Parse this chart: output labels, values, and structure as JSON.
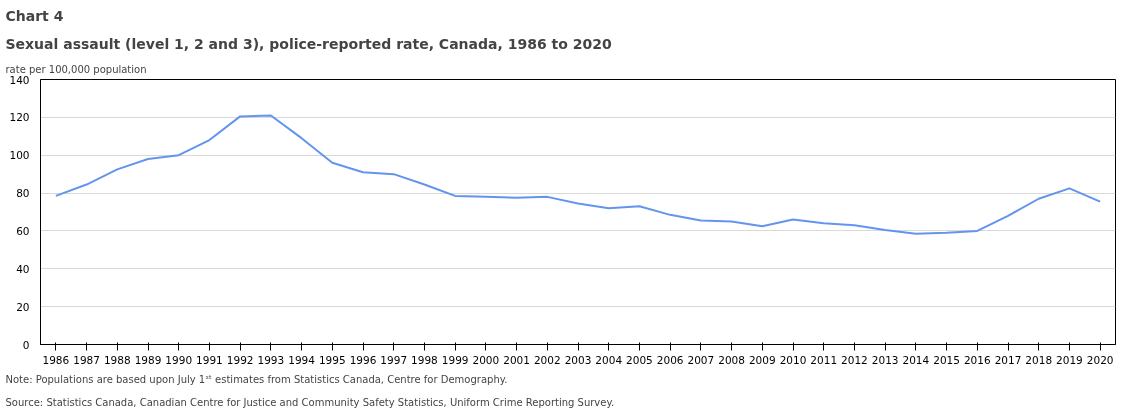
{
  "chart_data": {
    "type": "line",
    "title": "Chart 4",
    "subtitle": "Sexual assault (level 1, 2 and 3), police-reported rate, Canada, 1986 to 2020",
    "ylabel": "rate per 100,000 population",
    "categories": [
      "1986",
      "1987",
      "1988",
      "1989",
      "1990",
      "1991",
      "1992",
      "1993",
      "1994",
      "1995",
      "1996",
      "1997",
      "1998",
      "1999",
      "2000",
      "2001",
      "2002",
      "2003",
      "2004",
      "2005",
      "2006",
      "2007",
      "2008",
      "2009",
      "2010",
      "2011",
      "2012",
      "2013",
      "2014",
      "2015",
      "2016",
      "2017",
      "2018",
      "2019",
      "2020"
    ],
    "series": [
      {
        "color": "#6495ed",
        "values": [
          78.5,
          84.5,
          92.5,
          98,
          100,
          108,
          120.5,
          121,
          109,
          96,
          91,
          90,
          84.5,
          78.5,
          78,
          77.5,
          78,
          74.5,
          72,
          73,
          68.5,
          65.5,
          65,
          62.5,
          66,
          64,
          63,
          60.5,
          58.5,
          59,
          60,
          68,
          77,
          82.5,
          75.5
        ]
      }
    ],
    "ylim": [
      0,
      140
    ],
    "yticks": [
      0,
      20,
      40,
      60,
      80,
      100,
      120,
      140
    ],
    "grid": "y",
    "marker": "none",
    "line_style": "solid",
    "annotations": [
      "Note: Populations are based upon July 1ˢᵗ estimates from Statistics Canada, Centre for Demography.",
      "Source: Statistics Canada, Canadian Centre for Justice and Community Safety Statistics, Uniform Crime Reporting Survey."
    ]
  }
}
